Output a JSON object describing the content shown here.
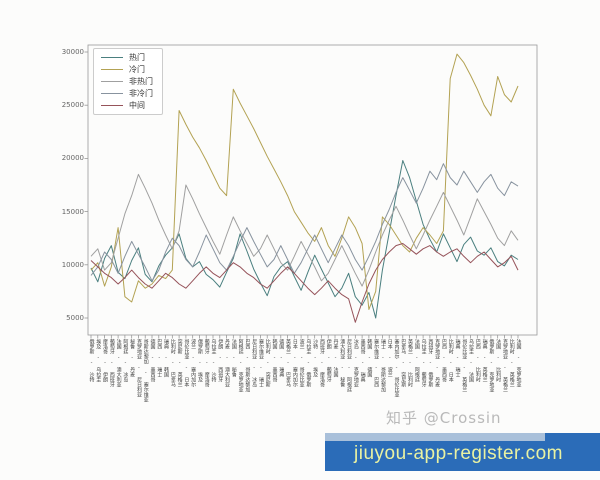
{
  "watermark": {
    "text": "知乎 @Crossin"
  },
  "banner": {
    "url_text": "jiuyou-app-register.com",
    "bg_color": "#2b6cb8",
    "strip_color": "#a9c0da",
    "text_color": "#e9f2a2"
  },
  "chart_data": {
    "type": "line",
    "title": "",
    "xlabel": "",
    "ylabel": "",
    "grid": false,
    "legend_position": "upper left",
    "ylim": [
      3400,
      30700
    ],
    "yticks": [
      5000,
      10000,
      15000,
      20000,
      25000,
      30000
    ],
    "axis_color": "#999999",
    "categories": [
      "俄罗斯 - 沙特",
      "埃及 - 乌拉圭",
      "摩洛哥 - 伊朗",
      "葡萄牙 - 西班牙",
      "法国 - 澳大利亚",
      "阿根廷 - 冰岛",
      "秘鲁 - 丹麦",
      "克罗地亚 - 尼日利亚",
      "哥斯达黎加 - 塞尔维亚",
      "德国 - 墨西哥",
      "巴西 - 瑞士",
      "瑞典 - 韩国",
      "比利时 - 巴拿马",
      "突尼斯 - 英格兰",
      "哥伦比亚 - 日本",
      "波兰 - 塞内加尔",
      "俄罗斯 - 埃及",
      "葡萄牙 - 摩洛哥",
      "乌拉圭 - 沙特",
      "伊朗 - 西班牙",
      "丹麦 - 澳大利亚",
      "法国 - 秘鲁",
      "阿根廷 - 克罗地亚",
      "巴西 - 哥斯达黎加",
      "尼日利亚 - 冰岛",
      "塞尔维亚 - 瑞士",
      "比利时 - 突尼斯",
      "韩国 - 墨西哥",
      "德国 - 瑞典",
      "英格兰 - 巴拿马",
      "日本 - 塞内加尔",
      "波兰 - 哥伦比亚",
      "乌拉圭 - 俄罗斯",
      "沙特 - 埃及",
      "西班牙 - 摩洛哥",
      "伊朗 - 葡萄牙",
      "丹麦 - 法国",
      "澳大利亚 - 秘鲁",
      "尼日利亚 - 阿根廷",
      "冰岛 - 克罗地亚",
      "墨西哥 - 瑞典",
      "韩国 - 德国",
      "塞尔维亚 - 巴西",
      "瑞士 - 哥斯达黎加",
      "日本 - 波兰",
      "塞内加尔 - 哥伦比亚",
      "巴拿马 - 突尼斯",
      "英格兰 - 比利时",
      "法国 - 阿根廷",
      "乌拉圭 - 葡萄牙",
      "西班牙 - 俄罗斯",
      "克罗地亚 - 丹麦",
      "巴西 - 墨西哥",
      "比利时 - 日本",
      "瑞典 - 瑞士",
      "哥伦比亚 - 英格兰",
      "乌拉圭 - 法国",
      "巴西 - 比利时",
      "瑞典 - 英格兰",
      "俄罗斯 - 克罗地亚",
      "法国 - 比利时",
      "克罗地亚 - 英格兰",
      "比利时 - 英格兰",
      "法国 - 克罗地亚"
    ],
    "series": [
      {
        "name": "热门",
        "color": "#4a7f7f",
        "values": [
          9700,
          8400,
          10600,
          11800,
          9300,
          8700,
          10400,
          11600,
          9100,
          8400,
          9900,
          10900,
          11600,
          12900,
          10600,
          9800,
          10300,
          9100,
          8600,
          7900,
          9300,
          10600,
          12900,
          11300,
          9600,
          8300,
          7100,
          8900,
          9800,
          10300,
          8900,
          7600,
          9300,
          10900,
          9600,
          8300,
          7000,
          7800,
          9200,
          7000,
          6200,
          7400,
          5000,
          9500,
          13000,
          16500,
          19800,
          18200,
          16000,
          13800,
          12400,
          11200,
          12900,
          11600,
          10300,
          11900,
          12600,
          11300,
          10900,
          11600,
          10300,
          9900,
          10900,
          10500
        ]
      },
      {
        "name": "冷门",
        "color": "#b3a253",
        "values": [
          9500,
          10200,
          8000,
          9800,
          13500,
          7000,
          6500,
          8500,
          7800,
          8200,
          9000,
          8700,
          9500,
          24500,
          23200,
          22000,
          21000,
          19800,
          18500,
          17200,
          16500,
          26500,
          25200,
          24000,
          22800,
          21500,
          20200,
          19000,
          17800,
          16500,
          15000,
          14000,
          13000,
          12200,
          13500,
          11800,
          10800,
          12500,
          14500,
          13500,
          12000,
          5800,
          7500,
          14500,
          13800,
          12800,
          11800,
          11200,
          12500,
          13500,
          12800,
          12000,
          13200,
          27500,
          29800,
          29000,
          27800,
          26500,
          25000,
          24000,
          27700,
          26000,
          25300,
          26800
        ]
      },
      {
        "name": "非热门",
        "color": "#a0a0a0",
        "values": [
          10800,
          11500,
          9500,
          10200,
          12500,
          14800,
          16500,
          18500,
          17200,
          15800,
          14200,
          12800,
          11500,
          13200,
          17500,
          16200,
          14800,
          13500,
          12200,
          11000,
          12800,
          14500,
          13200,
          12000,
          10800,
          11500,
          12800,
          11500,
          10200,
          9500,
          10800,
          12200,
          11000,
          9800,
          8500,
          9200,
          10500,
          11800,
          10500,
          9200,
          8000,
          9500,
          11200,
          12800,
          14200,
          15500,
          14200,
          12800,
          11500,
          12800,
          14200,
          15500,
          16800,
          15500,
          14200,
          12800,
          14500,
          16200,
          15000,
          13800,
          12500,
          11800,
          13200,
          12300
        ]
      },
      {
        "name": "非冷门",
        "color": "#88939f",
        "values": [
          9000,
          9800,
          11200,
          10500,
          9200,
          10800,
          12200,
          11000,
          9800,
          8500,
          9500,
          11200,
          12500,
          11800,
          10500,
          9800,
          11200,
          12800,
          11500,
          10200,
          9500,
          10800,
          12200,
          13500,
          12200,
          11000,
          9800,
          10500,
          11800,
          10500,
          9200,
          10200,
          11500,
          12800,
          11500,
          10200,
          11500,
          12800,
          11800,
          10500,
          9500,
          10800,
          12200,
          13800,
          15200,
          16800,
          18200,
          17000,
          15800,
          17200,
          18800,
          18000,
          19500,
          18200,
          17500,
          18800,
          17800,
          16800,
          17800,
          18500,
          17200,
          16500,
          17800,
          17400
        ]
      },
      {
        "name": "中间",
        "color": "#96535a",
        "values": [
          10400,
          9800,
          9200,
          8800,
          8200,
          8800,
          9500,
          8800,
          8200,
          7800,
          8500,
          9200,
          8800,
          8200,
          7800,
          8500,
          9200,
          9800,
          9200,
          8800,
          9500,
          10200,
          9800,
          9200,
          8800,
          8200,
          7800,
          8500,
          9200,
          9800,
          9200,
          8500,
          7800,
          7200,
          7800,
          8500,
          7800,
          7200,
          6800,
          4600,
          6500,
          8200,
          9500,
          10500,
          11200,
          11800,
          12000,
          11500,
          11000,
          11500,
          11800,
          11200,
          10800,
          11200,
          11500,
          10800,
          10200,
          10800,
          11200,
          10500,
          9800,
          10200,
          10800,
          9500
        ]
      }
    ]
  }
}
